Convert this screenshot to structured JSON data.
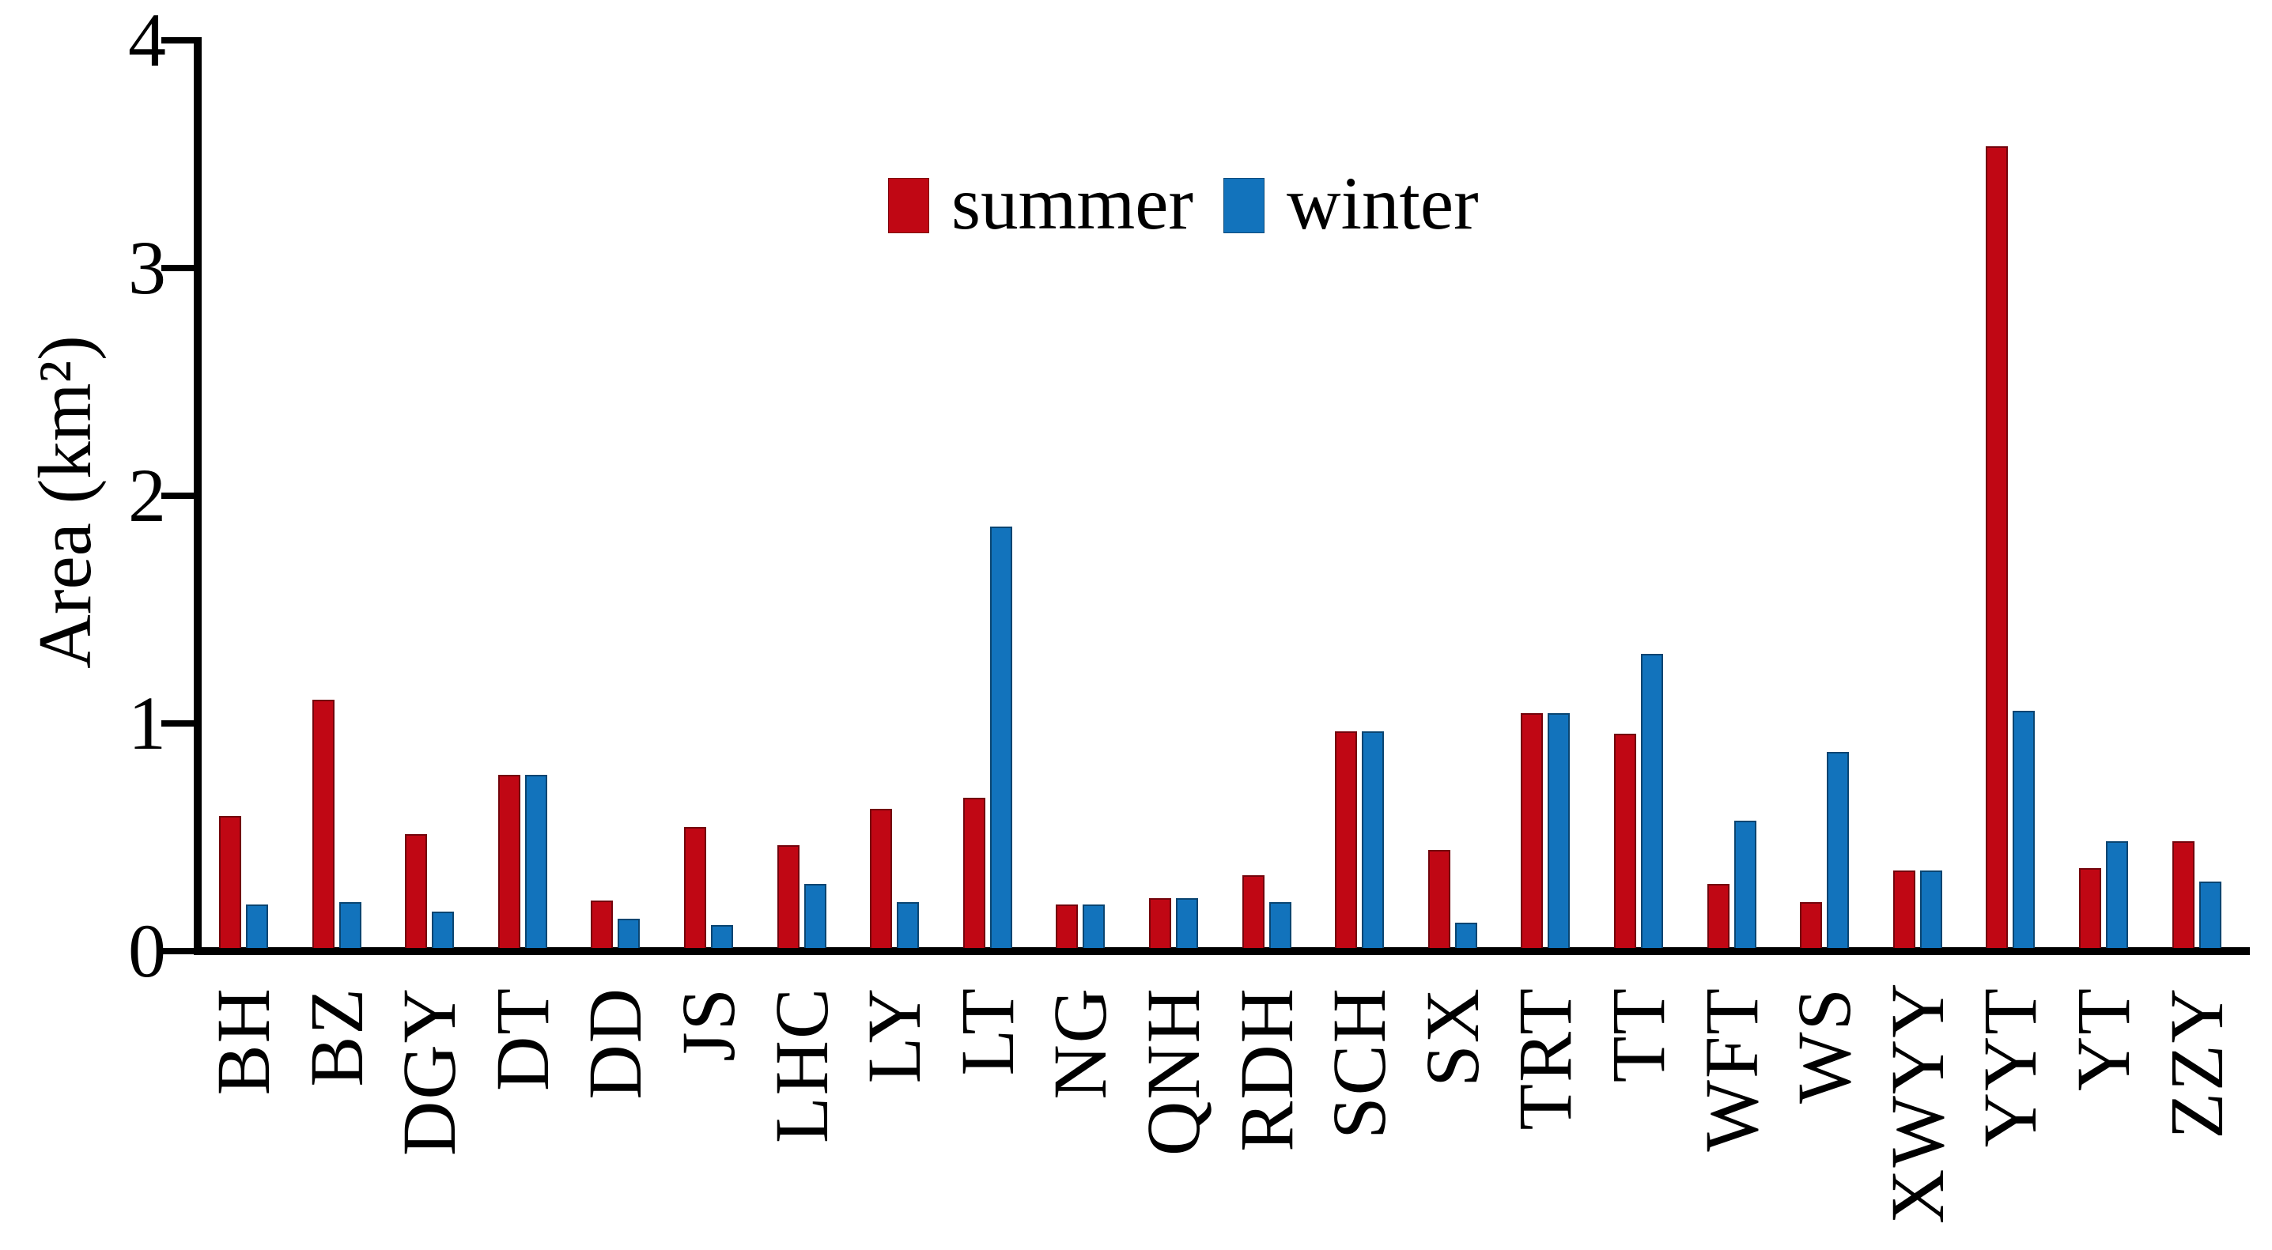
{
  "chart_data": {
    "type": "bar",
    "title": "",
    "xlabel": "",
    "ylabel": "Area (km²)",
    "ylim": [
      0,
      4
    ],
    "yticks": [
      "0",
      "1",
      "2",
      "3",
      "4"
    ],
    "grid": false,
    "legend_position": "top-center",
    "categories": [
      "BH",
      "BZ",
      "DGY",
      "DT",
      "DD",
      "JS",
      "LHC",
      "LY",
      "LT",
      "NG",
      "QNH",
      "RDH",
      "SCH",
      "SX",
      "TRT",
      "TT",
      "WFT",
      "WS",
      "XWYY",
      "YYT",
      "YT",
      "ZZY"
    ],
    "series": [
      {
        "name": "summer",
        "color": "#c00714",
        "values": [
          0.58,
          1.09,
          0.5,
          0.76,
          0.21,
          0.53,
          0.45,
          0.61,
          0.66,
          0.19,
          0.22,
          0.32,
          0.95,
          0.43,
          1.03,
          0.94,
          0.28,
          0.2,
          0.34,
          3.52,
          0.35,
          0.47
        ]
      },
      {
        "name": "winter",
        "color": "#1273bc",
        "values": [
          0.19,
          0.2,
          0.16,
          0.76,
          0.13,
          0.1,
          0.28,
          0.2,
          1.85,
          0.19,
          0.22,
          0.2,
          0.95,
          0.11,
          1.03,
          1.29,
          0.56,
          0.86,
          0.34,
          1.04,
          0.47,
          0.29
        ]
      }
    ]
  },
  "legend": {
    "summer_label": "summer",
    "winter_label": "winter"
  },
  "colors": {
    "summer": "#c00714",
    "winter": "#1273bc",
    "axis": "#000000"
  }
}
